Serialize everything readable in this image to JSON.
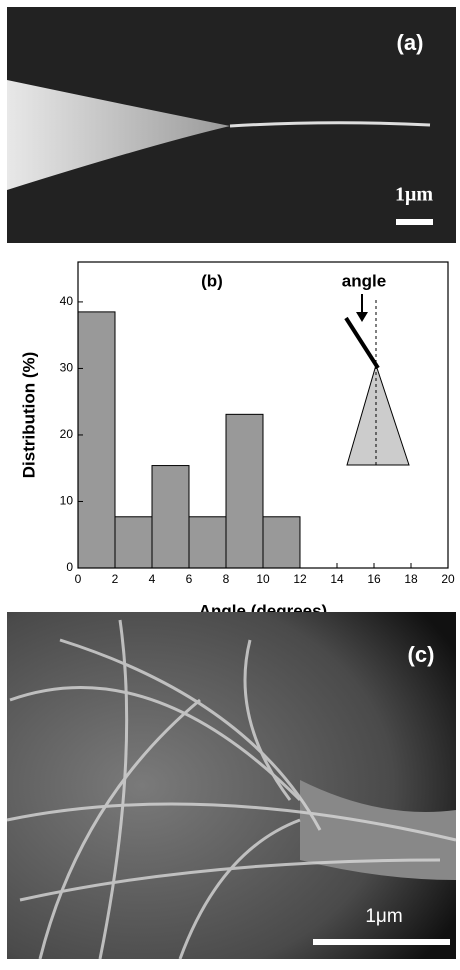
{
  "chart_data": {
    "type": "histogram",
    "bins": [
      0,
      2,
      4,
      6,
      8,
      10,
      12
    ],
    "values": [
      38.5,
      7.7,
      15.4,
      7.7,
      23.1,
      7.7
    ],
    "color": "#999999",
    "xlabel": "Angle (degrees)",
    "ylabel": "Distribution (%)",
    "xlim": [
      0,
      20
    ],
    "xticks": [
      0,
      2,
      4,
      6,
      8,
      10,
      12,
      14,
      16,
      18,
      20
    ],
    "ylim": [
      0,
      46
    ],
    "yticks": [
      0,
      10,
      20,
      30,
      40
    ],
    "panel_label": "(b)",
    "inset_label": "angle"
  },
  "panels": {
    "a": {
      "label": "(a)",
      "scale_bar": "1μm"
    },
    "c": {
      "label": "(c)",
      "scale_bar": "1μm"
    }
  }
}
